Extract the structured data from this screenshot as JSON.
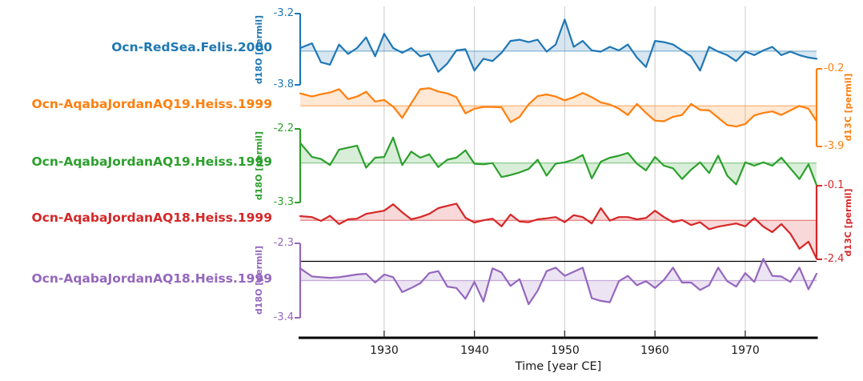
{
  "chart_data": {
    "type": "line",
    "title": "",
    "xlabel": "Time [year CE]",
    "x_ticks": [
      1930,
      1940,
      1950,
      1960,
      1970
    ],
    "xlim": [
      1920.7,
      1977.9
    ],
    "years": {
      "start": 1921,
      "end": 1978,
      "step": 1
    },
    "grid": "vertical-decade-gridlines",
    "gridline_color": "#cccccc",
    "time_axis_color": "#000000",
    "series": [
      {
        "name": "Ocn-RedSea.Felis.2000",
        "color": "#1f77b4",
        "ylabel": "d18O [permil]",
        "axis_side": "left",
        "yticks": [
          -3.2,
          -3.8
        ],
        "ylim": [
          -3.2,
          -3.8
        ],
        "values": [
          -3.49,
          -3.45,
          -3.61,
          -3.63,
          -3.46,
          -3.54,
          -3.49,
          -3.4,
          -3.56,
          -3.37,
          -3.49,
          -3.53,
          -3.49,
          -3.56,
          -3.54,
          -3.69,
          -3.62,
          -3.51,
          -3.5,
          -3.68,
          -3.58,
          -3.6,
          -3.53,
          -3.43,
          -3.42,
          -3.44,
          -3.42,
          -3.52,
          -3.46,
          -3.25,
          -3.48,
          -3.43,
          -3.51,
          -3.52,
          -3.48,
          -3.51,
          -3.46,
          -3.57,
          -3.65,
          -3.43,
          -3.44,
          -3.46,
          -3.51,
          -3.56,
          -3.68,
          -3.48,
          -3.52,
          -3.55,
          -3.6,
          -3.52,
          -3.55,
          -3.51,
          -3.48,
          -3.55,
          -3.52,
          -3.55,
          -3.57,
          -3.58
        ]
      },
      {
        "name": "Ocn-AqabaJordanAQ19.Heiss.1999",
        "color": "#ff7f0e",
        "ylabel": "d13C [permil]",
        "axis_side": "right",
        "yticks": [
          -0.2,
          -3.9
        ],
        "ylim": [
          -0.2,
          -3.9
        ],
        "values": [
          -1.37,
          -1.52,
          -1.41,
          -1.33,
          -1.17,
          -1.64,
          -1.52,
          -1.29,
          -1.76,
          -1.68,
          -2.0,
          -2.54,
          -1.84,
          -1.17,
          -1.12,
          -1.28,
          -1.37,
          -1.55,
          -2.32,
          -2.1,
          -2.02,
          -2.02,
          -2.04,
          -2.74,
          -2.49,
          -1.89,
          -1.5,
          -1.42,
          -1.52,
          -1.7,
          -1.55,
          -1.35,
          -1.55,
          -1.8,
          -1.9,
          -2.1,
          -2.4,
          -1.87,
          -2.3,
          -2.67,
          -2.7,
          -2.49,
          -2.4,
          -1.87,
          -2.16,
          -2.18,
          -2.53,
          -2.88,
          -2.95,
          -2.83,
          -2.42,
          -2.3,
          -2.23,
          -2.4,
          -2.18,
          -1.97,
          -2.1,
          -2.7
        ]
      },
      {
        "name": "Ocn-AqabaJordanAQ19.Heiss.1999",
        "color": "#2ca02c",
        "ylabel": "d18O [permil]",
        "axis_side": "left",
        "yticks": [
          -2.2,
          -3.3
        ],
        "ylim": [
          -2.2,
          -3.3
        ],
        "values": [
          -2.41,
          -2.62,
          -2.65,
          -2.74,
          -2.51,
          -2.48,
          -2.45,
          -2.78,
          -2.63,
          -2.62,
          -2.33,
          -2.74,
          -2.54,
          -2.63,
          -2.58,
          -2.77,
          -2.66,
          -2.63,
          -2.52,
          -2.72,
          -2.73,
          -2.71,
          -2.92,
          -2.89,
          -2.85,
          -2.8,
          -2.66,
          -2.9,
          -2.72,
          -2.7,
          -2.66,
          -2.59,
          -2.94,
          -2.69,
          -2.63,
          -2.6,
          -2.56,
          -2.72,
          -2.82,
          -2.62,
          -2.75,
          -2.79,
          -2.95,
          -2.81,
          -2.7,
          -2.86,
          -2.6,
          -2.9,
          -3.03,
          -2.7,
          -2.75,
          -2.7,
          -2.75,
          -2.63,
          -2.79,
          -2.95,
          -2.73,
          -3.04
        ]
      },
      {
        "name": "Ocn-AqabaJordanAQ18.Heiss.1999",
        "color": "#d62728",
        "ylabel": "d13C [permil]",
        "axis_side": "right",
        "yticks": [
          -0.1,
          -2.4
        ],
        "ylim": [
          -0.1,
          -2.4
        ],
        "values": [
          -1.05,
          -1.08,
          -1.2,
          -1.04,
          -1.3,
          -1.15,
          -1.13,
          -0.98,
          -0.93,
          -0.88,
          -0.68,
          -0.93,
          -1.15,
          -1.08,
          -0.98,
          -0.8,
          -0.73,
          -0.66,
          -1.1,
          -1.25,
          -1.18,
          -1.13,
          -1.37,
          -1.0,
          -1.22,
          -1.24,
          -1.15,
          -1.12,
          -1.08,
          -1.24,
          -1.02,
          -1.08,
          -1.28,
          -0.8,
          -1.19,
          -1.08,
          -1.08,
          -1.15,
          -1.11,
          -0.88,
          -1.08,
          -1.24,
          -1.17,
          -1.33,
          -1.24,
          -1.46,
          -1.38,
          -1.33,
          -1.28,
          -1.37,
          -1.11,
          -1.38,
          -1.55,
          -1.3,
          -1.6,
          -2.07,
          -1.85,
          -2.38
        ]
      },
      {
        "name": "Ocn-AqabaJordanAQ18.Heiss.1999",
        "color": "#9467bd",
        "ylabel": "d18O [permil]",
        "axis_side": "left",
        "yticks": [
          -2.3,
          -3.4
        ],
        "ylim": [
          -2.3,
          -3.4
        ],
        "values": [
          -2.67,
          -2.79,
          -2.8,
          -2.81,
          -2.8,
          -2.78,
          -2.76,
          -2.75,
          -2.88,
          -2.76,
          -2.8,
          -3.02,
          -2.96,
          -2.89,
          -2.74,
          -2.71,
          -2.94,
          -2.96,
          -3.12,
          -2.87,
          -3.16,
          -2.67,
          -2.73,
          -2.93,
          -2.83,
          -3.2,
          -3.0,
          -2.71,
          -2.66,
          -2.78,
          -2.72,
          -2.66,
          -3.11,
          -3.15,
          -3.17,
          -2.86,
          -2.78,
          -2.92,
          -2.86,
          -2.96,
          -2.84,
          -2.66,
          -2.88,
          -2.88,
          -2.99,
          -2.92,
          -2.66,
          -2.86,
          -2.94,
          -2.74,
          -2.87,
          -2.53,
          -2.78,
          -2.79,
          -2.87,
          -2.66,
          -2.98,
          -2.75
        ]
      }
    ]
  }
}
